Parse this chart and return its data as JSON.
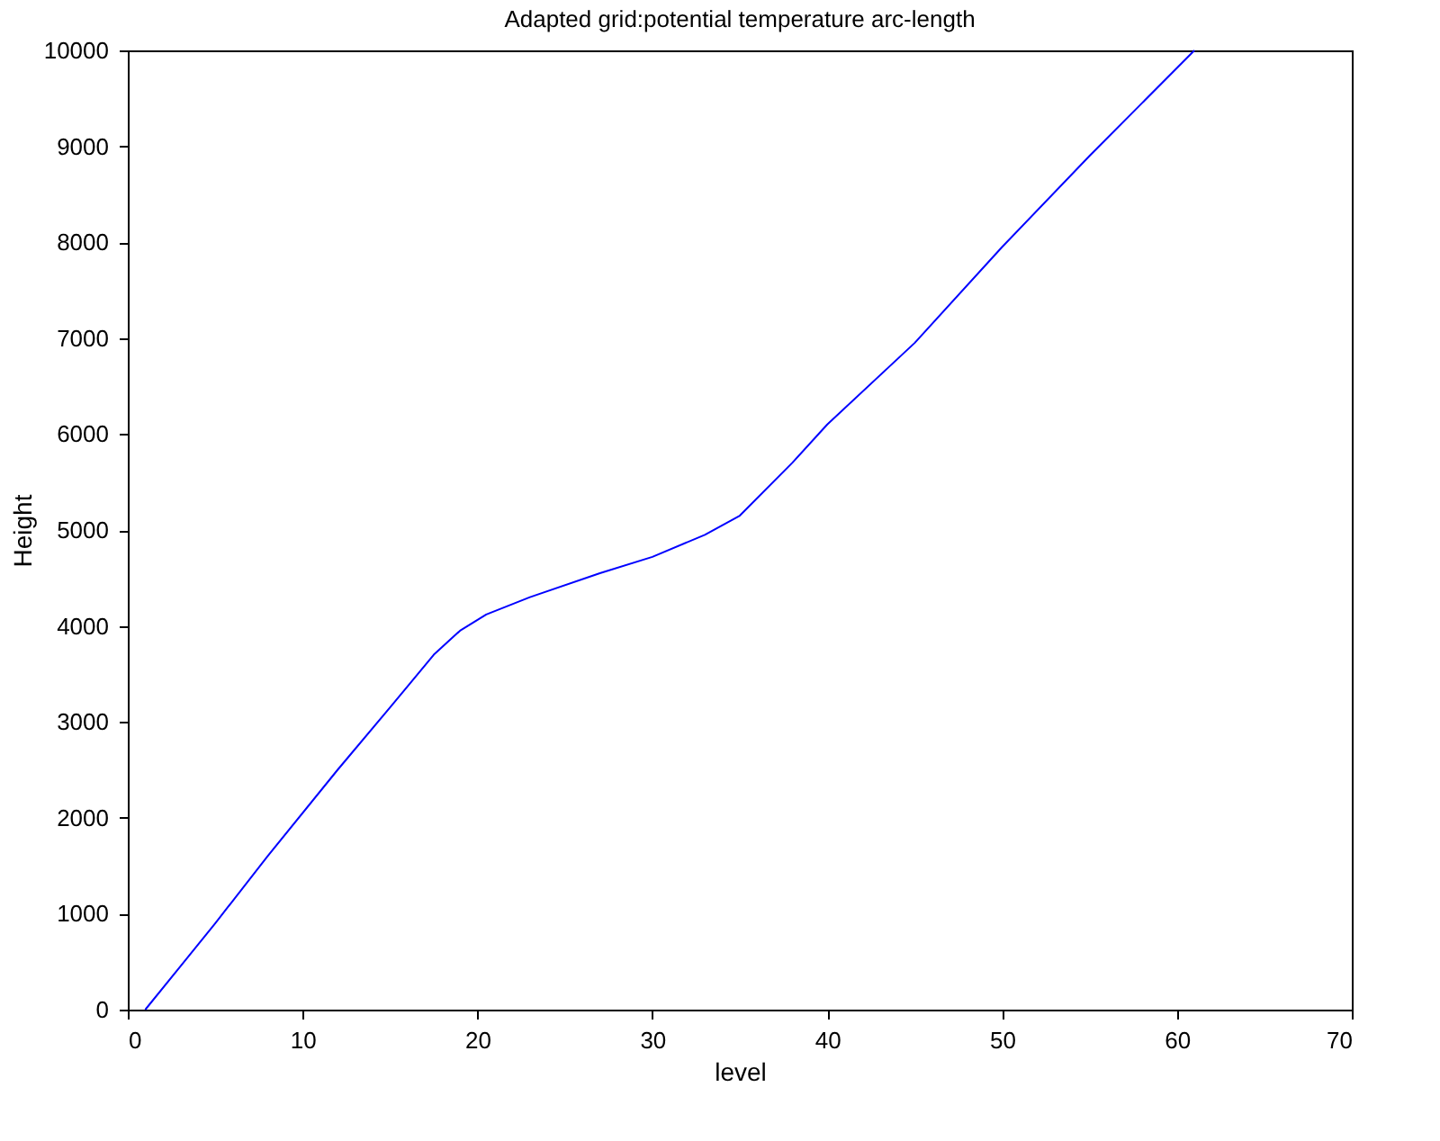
{
  "chart_data": {
    "type": "line",
    "title": "Adapted grid:potential temperature arc-length",
    "xlabel": "level",
    "ylabel": "Height",
    "x": [
      1,
      3,
      5,
      8,
      12,
      15,
      17.5,
      19,
      20.5,
      23,
      27,
      30,
      33,
      35,
      38,
      40,
      45,
      50,
      55,
      58,
      61
    ],
    "series": [
      {
        "color": "#0000ff",
        "values": [
          0,
          450,
          900,
          1600,
          2500,
          3150,
          3700,
          3950,
          4120,
          4300,
          4550,
          4720,
          4950,
          5150,
          5700,
          6100,
          6950,
          7950,
          8900,
          9450,
          10000
        ]
      }
    ],
    "xlim": [
      0,
      70
    ],
    "ylim": [
      0,
      10000
    ],
    "xticks": [
      0,
      10,
      20,
      30,
      40,
      50,
      60,
      70
    ],
    "yticks": [
      0,
      1000,
      2000,
      3000,
      4000,
      5000,
      6000,
      7000,
      8000,
      9000,
      10000
    ],
    "grid": false,
    "legend": false,
    "marker": "none",
    "line_style": "solid"
  }
}
